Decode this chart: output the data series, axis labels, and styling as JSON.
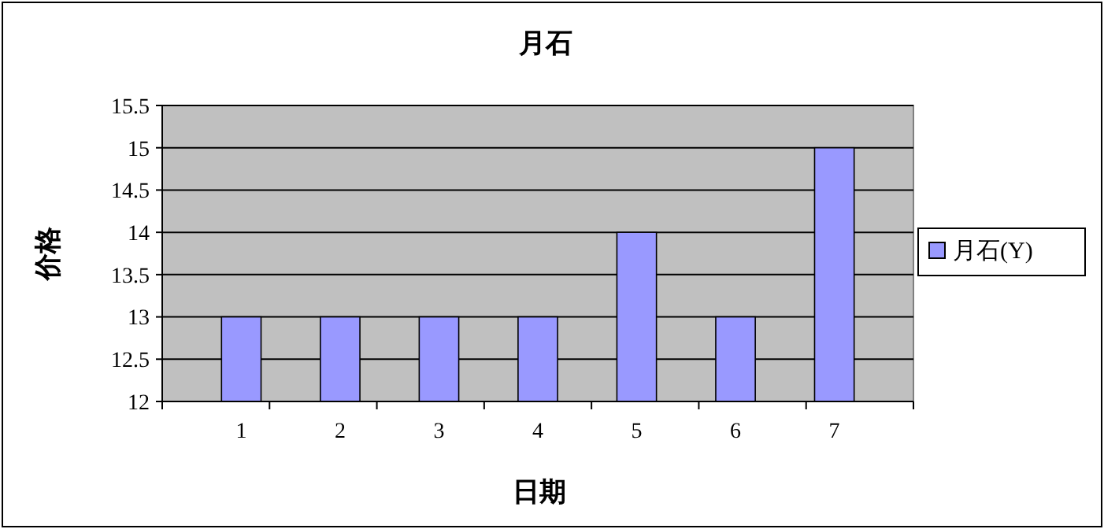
{
  "chart_data": {
    "type": "bar",
    "title": "月石",
    "xlabel": "日期",
    "ylabel": "价格",
    "categories": [
      "1",
      "2",
      "3",
      "4",
      "5",
      "6",
      "7"
    ],
    "series": [
      {
        "name": "月石(Y)",
        "color": "#9999ff",
        "values": [
          13,
          13,
          13,
          13,
          14,
          13,
          15
        ]
      }
    ],
    "ylim": [
      12,
      15.5
    ],
    "yticks": [
      12,
      12.5,
      13,
      13.5,
      14,
      14.5,
      15,
      15.5
    ],
    "grid": "y",
    "legend": "right"
  }
}
